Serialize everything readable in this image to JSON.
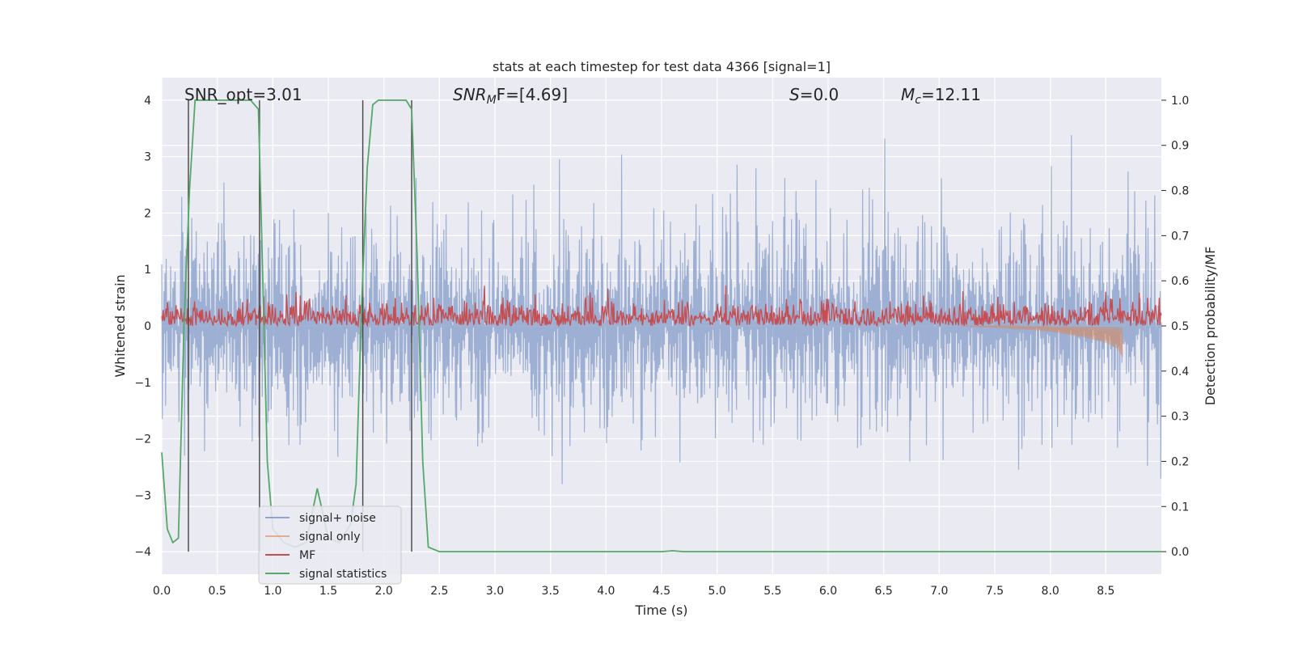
{
  "chart_data": {
    "type": "line",
    "title": "stats at each timestep for test data 4366 [signal=1]",
    "xlabel": "Time (s)",
    "ylabel_left": "Whitened strain",
    "ylabel_right": "Detection probability/MF",
    "xlim": [
      0.0,
      9.0
    ],
    "ylim_left": [
      -4.4,
      4.4
    ],
    "ylim_right": [
      -0.05,
      1.05
    ],
    "x_ticks": [
      "0.0",
      "0.5",
      "1.0",
      "1.5",
      "2.0",
      "2.5",
      "3.0",
      "3.5",
      "4.0",
      "4.5",
      "5.0",
      "5.5",
      "6.0",
      "6.5",
      "7.0",
      "7.5",
      "8.0",
      "8.5"
    ],
    "y_ticks_left": [
      "4",
      "3",
      "2",
      "1",
      "0",
      "−1",
      "−2",
      "−3",
      "−4"
    ],
    "y_ticks_right": [
      "1.0",
      "0.9",
      "0.8",
      "0.7",
      "0.6",
      "0.5",
      "0.4",
      "0.3",
      "0.2",
      "0.1",
      "0.0"
    ],
    "grid": true,
    "legend_position": "lower-left",
    "colors": {
      "background": "#eaeaf2",
      "signal_noise": "#8fa5cd",
      "signal_only": "#dd8452",
      "mf": "#c44e52",
      "signal_statistics": "#55a868",
      "markers": "#444444"
    },
    "annotations": {
      "snr_opt": "SNR_opt=3.01",
      "snr_mf_pre": "SNR",
      "snr_mf_sub": "M",
      "snr_mf_post": "F=[4.69]",
      "s_sym": "S",
      "s_val": "=0.0",
      "mc_sym": "M",
      "mc_sub": "c",
      "mc_val": "=12.11"
    },
    "series": [
      {
        "name": "signal+ noise",
        "axis": "left",
        "description_values": "noise roughly symmetric about 0, envelope about ±1.5 with spikes to ±3.5"
      },
      {
        "name": "signal only",
        "axis": "left",
        "x": [
          7.2,
          7.6,
          8.0,
          8.3,
          8.5,
          8.6,
          8.65
        ],
        "y": [
          0.0,
          -0.03,
          -0.1,
          -0.2,
          -0.3,
          -0.4,
          -0.55
        ]
      },
      {
        "name": "MF",
        "axis": "right",
        "description_values": "fluctuating between 0.5 and about 0.58"
      },
      {
        "name": "signal statistics",
        "axis": "right",
        "x": [
          0.0,
          0.05,
          0.1,
          0.15,
          0.2,
          0.25,
          0.3,
          0.35,
          0.5,
          0.7,
          0.8,
          0.87,
          0.9,
          0.95,
          1.0,
          1.1,
          1.2,
          1.3,
          1.4,
          1.5,
          1.6,
          1.7,
          1.75,
          1.8,
          1.85,
          1.9,
          1.95,
          2.0,
          2.2,
          2.25,
          2.3,
          2.35,
          2.4,
          2.5,
          4.5,
          4.6,
          4.7,
          9.0
        ],
        "y": [
          0.22,
          0.05,
          0.02,
          0.03,
          0.5,
          0.8,
          1.0,
          1.0,
          1.0,
          1.0,
          1.0,
          0.98,
          0.7,
          0.2,
          0.05,
          0.02,
          0.01,
          0.02,
          0.14,
          0.03,
          0.02,
          0.06,
          0.15,
          0.55,
          0.85,
          0.99,
          1.0,
          1.0,
          1.0,
          0.98,
          0.65,
          0.2,
          0.01,
          0.0,
          0.0,
          0.002,
          0.0,
          0.0
        ]
      }
    ],
    "vertical_markers": [
      0.24,
      0.88,
      1.81,
      2.25
    ]
  }
}
